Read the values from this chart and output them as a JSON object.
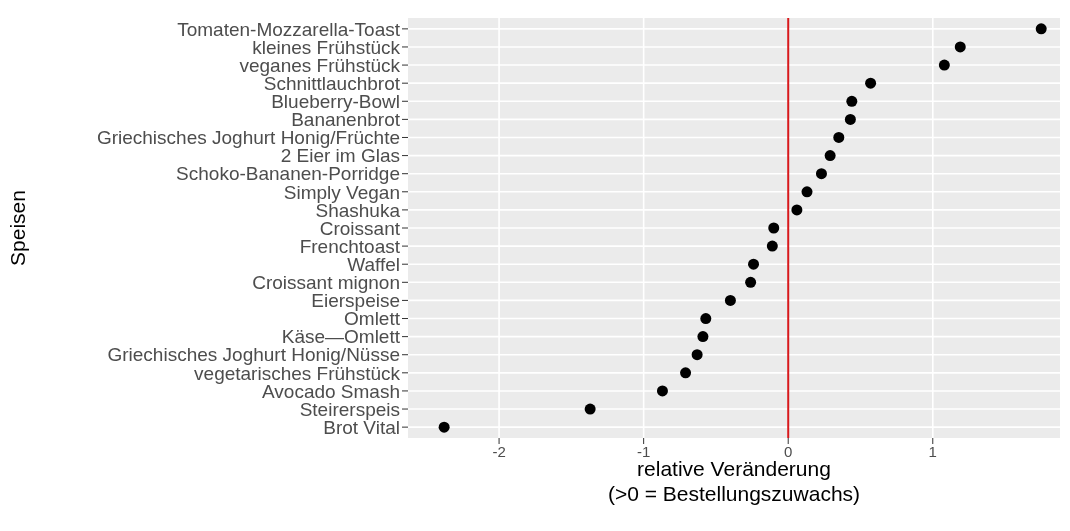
{
  "chart_data": {
    "type": "scatter",
    "xlabel": "relative Veränderung\n(>0 = Bestellungszuwachs)",
    "ylabel": "Speisen",
    "categories": [
      "Tomaten-Mozzarella-Toast",
      "kleines Frühstück",
      "veganes Frühstück",
      "Schnittlauchbrot",
      "Blueberry-Bowl",
      "Bananenbrot",
      "Griechisches Joghurt Honig/Früchte",
      "2 Eier im Glas",
      "Schoko-Bananen-Porridge",
      "Simply Vegan",
      "Shashuka",
      "Croissant",
      "Frenchtoast",
      "Waffel",
      "Croissant mignon",
      "Eierspeise",
      "Omlett",
      "Käse—Omlett",
      "Griechisches Joghurt Honig/Nüsse",
      "vegetarisches Frühstück",
      "Avocado Smash",
      "Steirerspeis",
      "Brot Vital"
    ],
    "orientation": "horizontal",
    "series": [
      {
        "color": "#000000",
        "values": [
          1.75,
          1.19,
          1.08,
          0.57,
          0.44,
          0.43,
          0.35,
          0.29,
          0.23,
          0.13,
          0.06,
          -0.1,
          -0.11,
          -0.24,
          -0.26,
          -0.4,
          -0.57,
          -0.59,
          -0.63,
          -0.71,
          -0.87,
          -1.37,
          -2.38
        ]
      }
    ],
    "xlim": [
      -2.63,
      1.88
    ],
    "xticks": [
      -2,
      -1,
      0,
      1
    ],
    "ref_lines": [
      {
        "axis": "x",
        "value": 0,
        "color": "#d7191c"
      }
    ],
    "grid": true,
    "marker": "circle",
    "legend": false
  }
}
